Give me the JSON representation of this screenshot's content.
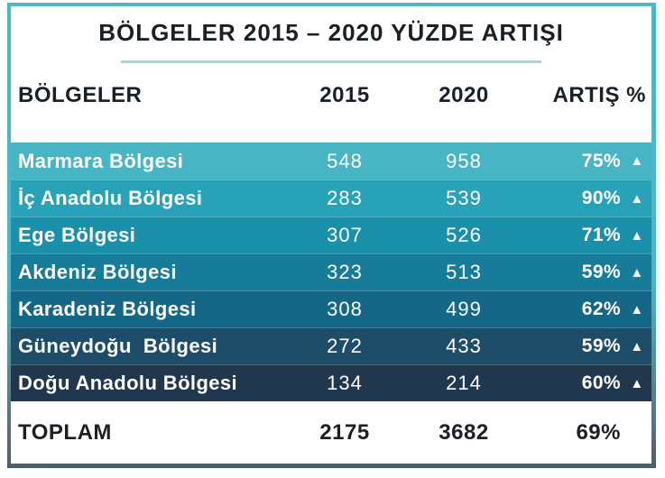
{
  "title": "BÖLGELER 2015 – 2020 YÜZDE ARTIŞI",
  "table": {
    "columns": [
      "BÖLGELER",
      "2015",
      "2020",
      "ARTIŞ %"
    ],
    "up_triangle": "▲",
    "rows": [
      {
        "name": "Marmara Bölgesi",
        "v2015": "548",
        "v2020": "958",
        "pct": "75%",
        "color": "#48b5c4"
      },
      {
        "name": "İç Anadolu Bölgesi",
        "v2015": "283",
        "v2020": "539",
        "pct": "90%",
        "color": "#27a2b8"
      },
      {
        "name": "Ege Bölgesi",
        "v2015": "307",
        "v2020": "526",
        "pct": "71%",
        "color": "#1a90ab"
      },
      {
        "name": "Akdeniz Bölgesi",
        "v2015": "323",
        "v2020": "513",
        "pct": "59%",
        "color": "#167c99"
      },
      {
        "name": "Karadeniz Bölgesi",
        "v2015": "308",
        "v2020": "499",
        "pct": "62%",
        "color": "#156787"
      },
      {
        "name": "Güneydoğu  Bölgesi",
        "v2015": "272",
        "v2020": "433",
        "pct": "59%",
        "color": "#1d4d68"
      },
      {
        "name": "Doğu Anadolu Bölgesi",
        "v2015": "134",
        "v2020": "214",
        "pct": "60%",
        "color": "#21374e"
      }
    ],
    "total": {
      "label": "TOPLAM",
      "v2015": "2175",
      "v2020": "3682",
      "pct": "69%"
    }
  },
  "colors": {
    "frame_teal": "#4cb8c7",
    "frame_bottom": "#4e5c66",
    "title_underline": "#a4d8df",
    "heading_text": "#1b1f26",
    "row_text": "#ffffff"
  },
  "chart_data": {
    "type": "table",
    "title": "BÖLGELER 2015 – 2020 YÜZDE ARTIŞI",
    "columns": [
      "BÖLGELER",
      "2015",
      "2020",
      "ARTIŞ %"
    ],
    "rows": [
      [
        "Marmara Bölgesi",
        548,
        958,
        "75%"
      ],
      [
        "İç Anadolu Bölgesi",
        283,
        539,
        "90%"
      ],
      [
        "Ege Bölgesi",
        307,
        526,
        "71%"
      ],
      [
        "Akdeniz Bölgesi",
        323,
        513,
        "59%"
      ],
      [
        "Karadeniz Bölgesi",
        308,
        499,
        "62%"
      ],
      [
        "Güneydoğu Bölgesi",
        272,
        433,
        "59%"
      ],
      [
        "Doğu Anadolu Bölgesi",
        134,
        214,
        "60%"
      ]
    ],
    "total_row": [
      "TOPLAM",
      2175,
      3682,
      "69%"
    ],
    "notes": "All region rows marked with upward triangle indicating increase; rows shaded light teal to dark navy gradient."
  }
}
